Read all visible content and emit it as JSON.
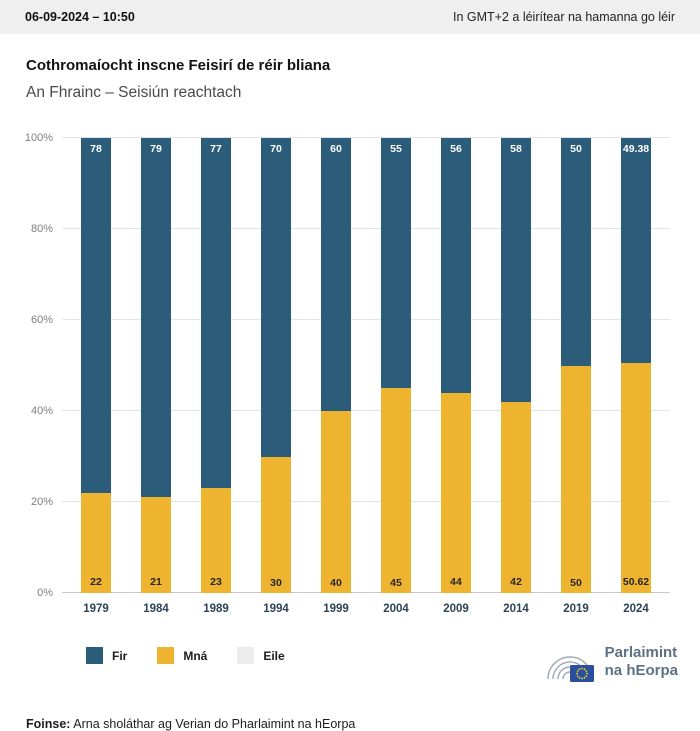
{
  "header": {
    "datetime": "06-09-2024 – 10:50",
    "timezone_note": "In GMT+2 a léirítear na hamanna go léir"
  },
  "title": "Cothromaíocht inscne Feisirí de réir bliana",
  "subtitle": "An Fhrainc – Seisiún reachtach",
  "chart_data": {
    "type": "bar",
    "stacked": true,
    "title": "Cothromaíocht inscne Feisirí de réir bliana",
    "subtitle": "An Fhrainc – Seisiún reachtach",
    "categories": [
      "1979",
      "1984",
      "1989",
      "1994",
      "1999",
      "2004",
      "2009",
      "2014",
      "2019",
      "2024"
    ],
    "series": [
      {
        "name": "Fir",
        "color": "#2b5c79",
        "values": [
          78,
          79,
          77,
          70,
          60,
          55,
          56,
          58,
          50,
          49.38
        ]
      },
      {
        "name": "Mná",
        "color": "#eeb42f",
        "values": [
          22,
          21,
          23,
          30,
          40,
          45,
          44,
          42,
          50,
          50.62
        ]
      },
      {
        "name": "Eile",
        "color": "#ededed",
        "values": [
          0,
          0,
          0,
          0,
          0,
          0,
          0,
          0,
          0,
          0
        ]
      }
    ],
    "y_ticks": [
      "0%",
      "20%",
      "40%",
      "60%",
      "80%",
      "100%"
    ],
    "ylim": [
      0,
      100
    ],
    "grid": true,
    "legend_position": "bottom-left"
  },
  "legend": [
    {
      "label": "Fir",
      "color": "#2b5c79"
    },
    {
      "label": "Mná",
      "color": "#eeb42f"
    },
    {
      "label": "Eile",
      "color": "#ededed"
    }
  ],
  "footer": {
    "source_label": "Foinse:",
    "source_text": " Arna sholáthar ag Verian do Pharlaimint na hEorpa"
  },
  "logo": {
    "line1": "Parlaimint",
    "line2": "na hEorpa"
  },
  "colors": {
    "fir": "#2b5c79",
    "mna": "#eeb42f",
    "eile": "#ededed",
    "eu_blue": "#29509e",
    "star_yellow": "#ffd617"
  }
}
